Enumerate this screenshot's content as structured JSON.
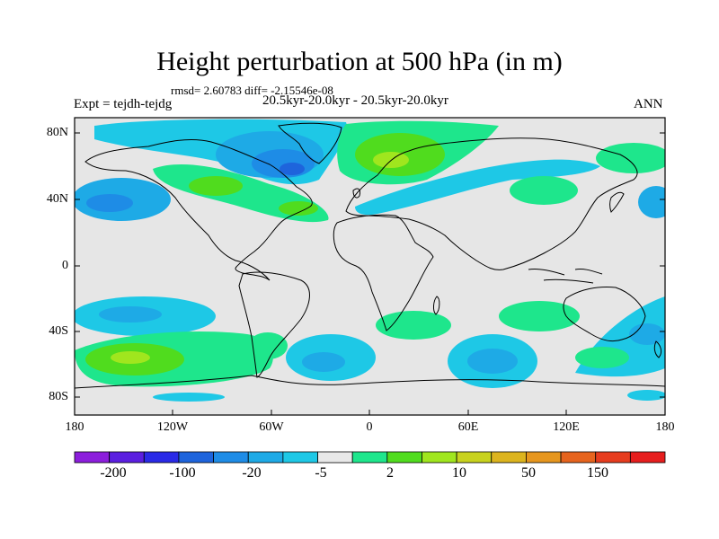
{
  "title": "Height perturbation at 500 hPa (in m)",
  "stats": "rmsd= 2.60783 diff= -2.15546e-08",
  "experiment": "Expt = tejdh-tejdg",
  "period": "20.5kyr-20.0kyr - 20.5kyr-20.0kyr",
  "season": "ANN",
  "lat_labels": [
    "80N",
    "40N",
    "0",
    "40S",
    "80S"
  ],
  "lon_labels": [
    "180",
    "120W",
    "60W",
    "0",
    "60E",
    "120E",
    "180"
  ],
  "colorbar": {
    "labels": [
      "-200",
      "-100",
      "-20",
      "-5",
      "2",
      "10",
      "50",
      "150"
    ],
    "colors": [
      "#8c1edc",
      "#5b1fe0",
      "#2a2ae6",
      "#1e64dc",
      "#1e8ce6",
      "#1eaae6",
      "#1ec8e6",
      "#e8e8e8",
      "#1ee68c",
      "#50dc1e",
      "#a0e61e",
      "#c8d21e",
      "#dcb41e",
      "#e6961e",
      "#e6641e",
      "#e63c1e",
      "#e61e1e"
    ]
  },
  "chart_data": {
    "type": "heatmap",
    "title": "Height perturbation at 500 hPa (in m)",
    "variable": "500 hPa geopotential height difference",
    "units": "m",
    "xlim": [
      -180,
      180
    ],
    "ylim": [
      -90,
      90
    ],
    "xticks": [
      "180",
      "120W",
      "60W",
      "0",
      "60E",
      "120E",
      "180"
    ],
    "yticks": [
      "80N",
      "40N",
      "0",
      "40S",
      "80S"
    ],
    "contour_levels": [
      -200,
      -100,
      -20,
      -5,
      2,
      10,
      50,
      150
    ],
    "anomalies": [
      {
        "region": "Canada / Greenland",
        "lon": -60,
        "lat": 62,
        "sign": "negative",
        "magnitude": "-20"
      },
      {
        "region": "Scandinavia / Arctic",
        "lon": 10,
        "lat": 68,
        "sign": "positive",
        "magnitude": "10"
      },
      {
        "region": "North America",
        "lon": -95,
        "lat": 47,
        "sign": "positive",
        "magnitude": "10"
      },
      {
        "region": "North Pacific",
        "lon": -158,
        "lat": 40,
        "sign": "negative",
        "magnitude": "-5"
      },
      {
        "region": "Southern Pacific",
        "lon": -138,
        "lat": -54,
        "sign": "positive",
        "magnitude": "50"
      },
      {
        "region": "South Atlantic",
        "lon": -35,
        "lat": -54,
        "sign": "negative",
        "magnitude": "-5"
      },
      {
        "region": "Southern Indian Ocean",
        "lon": 65,
        "lat": -55,
        "sign": "negative",
        "magnitude": "-5"
      }
    ]
  }
}
